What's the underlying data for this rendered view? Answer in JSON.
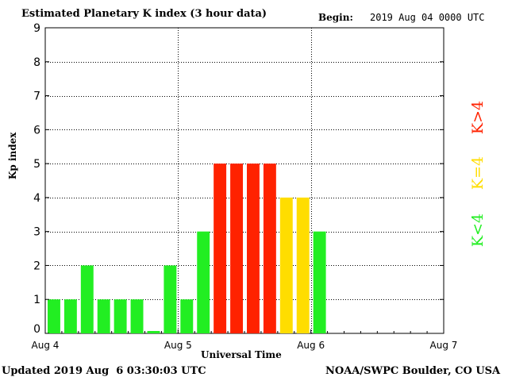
{
  "chart_data": {
    "type": "bar",
    "title": "Estimated Planetary K index (3 hour data)",
    "begin_label": "Begin:",
    "begin_value": "2019 Aug 04 0000 UTC",
    "xlabel": "Universal Time",
    "ylabel": "Kp index",
    "ylim": [
      0,
      9
    ],
    "yticks": [
      "0",
      "1",
      "2",
      "3",
      "4",
      "5",
      "6",
      "7",
      "8",
      "9"
    ],
    "xticks": [
      "Aug 4",
      "Aug 5",
      "Aug 6",
      "Aug 7"
    ],
    "grid": true,
    "values": [
      1,
      1,
      2,
      1,
      1,
      1,
      0.07,
      2,
      1,
      3,
      5,
      5,
      5,
      5,
      4,
      4,
      3
    ],
    "legend": [
      {
        "label": "K<4",
        "color": "#22ee22"
      },
      {
        "label": "K=4",
        "color": "#ffdd00"
      },
      {
        "label": "K>4",
        "color": "#ff2200"
      }
    ],
    "colors": {
      "low": "#22ee22",
      "equal": "#ffdd00",
      "high": "#ff2200"
    }
  },
  "footer": {
    "updated": "Updated 2019 Aug  6 03:30:03 UTC",
    "credit": "NOAA/SWPC Boulder, CO USA"
  }
}
